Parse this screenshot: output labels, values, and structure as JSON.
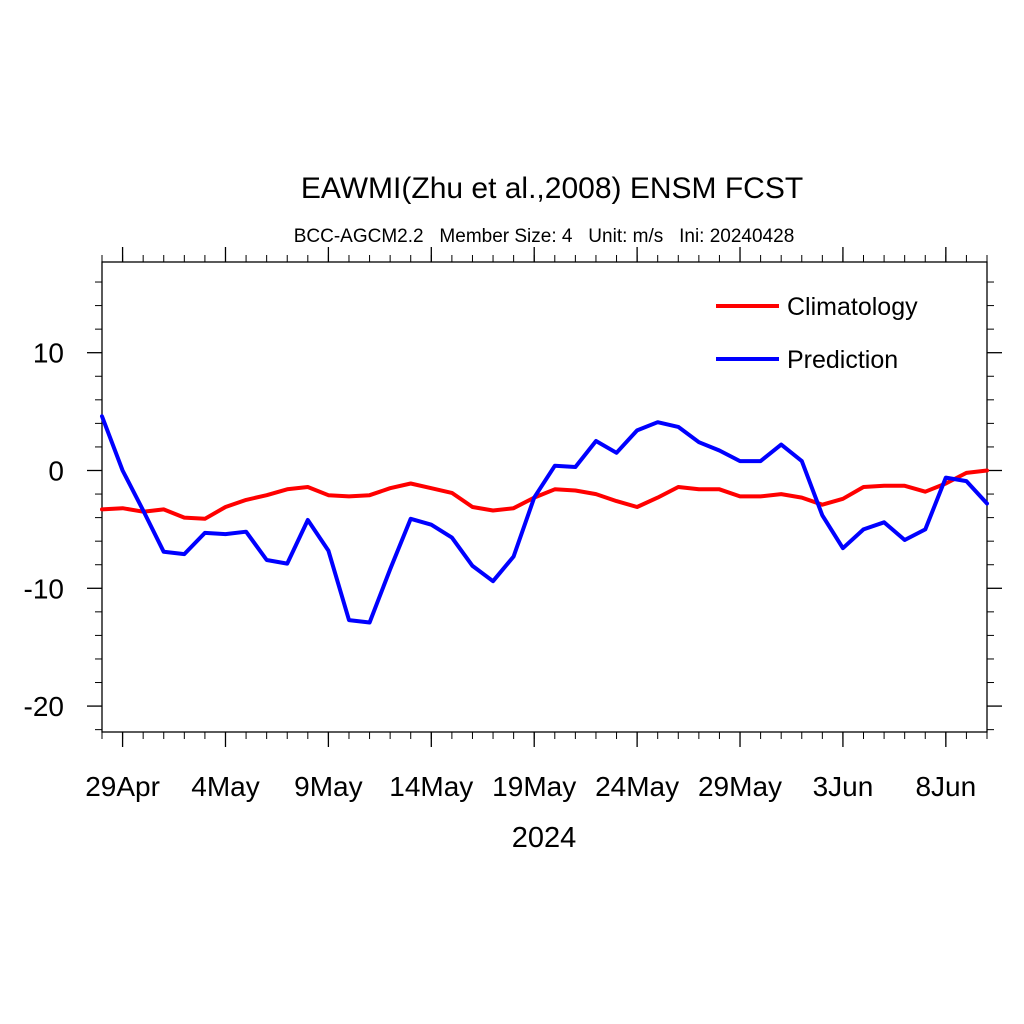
{
  "chart_data": {
    "type": "line",
    "title": "EAWMI(Zhu et al.,2008) ENSM FCST",
    "subtitle": "BCC-AGCM2.2   Member Size: 4   Unit: m/s   Ini: 20240428",
    "xlabel": "2024",
    "ylabel": "",
    "x_start": "2024-04-28",
    "x_end": "2024-06-10",
    "xlim": [
      "2024-04-28",
      "2024-06-10"
    ],
    "ylim": [
      -22.2,
      17.7
    ],
    "xticks": [
      {
        "date": "2024-04-29",
        "label": "29Apr"
      },
      {
        "date": "2024-05-04",
        "label": "4May"
      },
      {
        "date": "2024-05-09",
        "label": "9May"
      },
      {
        "date": "2024-05-14",
        "label": "14May"
      },
      {
        "date": "2024-05-19",
        "label": "19May"
      },
      {
        "date": "2024-05-24",
        "label": "24May"
      },
      {
        "date": "2024-05-29",
        "label": "29May"
      },
      {
        "date": "2024-06-03",
        "label": "3Jun"
      },
      {
        "date": "2024-06-08",
        "label": "8Jun"
      }
    ],
    "yticks": [
      {
        "value": 10,
        "label": "10"
      },
      {
        "value": 0,
        "label": "0"
      },
      {
        "value": -10,
        "label": "-10"
      },
      {
        "value": -20,
        "label": "-20"
      }
    ],
    "grid": false,
    "legend_position": "top-right",
    "series": [
      {
        "name": "Climatology",
        "color": "#ff0000",
        "x": [
          "2024-04-28",
          "2024-04-29",
          "2024-04-30",
          "2024-05-01",
          "2024-05-02",
          "2024-05-03",
          "2024-05-04",
          "2024-05-05",
          "2024-05-06",
          "2024-05-07",
          "2024-05-08",
          "2024-05-09",
          "2024-05-10",
          "2024-05-11",
          "2024-05-12",
          "2024-05-13",
          "2024-05-14",
          "2024-05-15",
          "2024-05-16",
          "2024-05-17",
          "2024-05-18",
          "2024-05-19",
          "2024-05-20",
          "2024-05-21",
          "2024-05-22",
          "2024-05-23",
          "2024-05-24",
          "2024-05-25",
          "2024-05-26",
          "2024-05-27",
          "2024-05-28",
          "2024-05-29",
          "2024-05-30",
          "2024-05-31",
          "2024-06-01",
          "2024-06-02",
          "2024-06-03",
          "2024-06-04",
          "2024-06-05",
          "2024-06-06",
          "2024-06-07",
          "2024-06-08",
          "2024-06-09",
          "2024-06-10"
        ],
        "values": [
          -3.3,
          -3.2,
          -3.5,
          -3.3,
          -4.0,
          -4.1,
          -3.1,
          -2.5,
          -2.1,
          -1.6,
          -1.4,
          -2.1,
          -2.2,
          -2.1,
          -1.5,
          -1.1,
          -1.5,
          -1.9,
          -3.1,
          -3.4,
          -3.2,
          -2.3,
          -1.6,
          -1.7,
          -2.0,
          -2.6,
          -3.1,
          -2.3,
          -1.4,
          -1.6,
          -1.6,
          -2.2,
          -2.2,
          -2.0,
          -2.3,
          -2.9,
          -2.4,
          -1.4,
          -1.3,
          -1.3,
          -1.8,
          -1.1,
          -0.2,
          0.0
        ]
      },
      {
        "name": "Prediction",
        "color": "#0000ff",
        "x": [
          "2024-04-28",
          "2024-04-29",
          "2024-04-30",
          "2024-05-01",
          "2024-05-02",
          "2024-05-03",
          "2024-05-04",
          "2024-05-05",
          "2024-05-06",
          "2024-05-07",
          "2024-05-08",
          "2024-05-09",
          "2024-05-10",
          "2024-05-11",
          "2024-05-12",
          "2024-05-13",
          "2024-05-14",
          "2024-05-15",
          "2024-05-16",
          "2024-05-17",
          "2024-05-18",
          "2024-05-19",
          "2024-05-20",
          "2024-05-21",
          "2024-05-22",
          "2024-05-23",
          "2024-05-24",
          "2024-05-25",
          "2024-05-26",
          "2024-05-27",
          "2024-05-28",
          "2024-05-29",
          "2024-05-30",
          "2024-05-31",
          "2024-06-01",
          "2024-06-02",
          "2024-06-03",
          "2024-06-04",
          "2024-06-05",
          "2024-06-06",
          "2024-06-07",
          "2024-06-08",
          "2024-06-09",
          "2024-06-10"
        ],
        "values": [
          4.6,
          0.0,
          -3.4,
          -6.9,
          -7.1,
          -5.3,
          -5.4,
          -5.2,
          -7.6,
          -7.9,
          -4.2,
          -6.8,
          -12.7,
          -12.9,
          -8.4,
          -4.1,
          -4.6,
          -5.7,
          -8.1,
          -9.4,
          -7.3,
          -2.3,
          0.4,
          0.3,
          2.5,
          1.5,
          3.4,
          4.1,
          3.7,
          2.4,
          1.7,
          0.8,
          0.8,
          2.2,
          0.8,
          -3.8,
          -6.6,
          -5.0,
          -4.4,
          -5.9,
          -5.0,
          -0.6,
          -0.9,
          -2.8
        ]
      }
    ]
  }
}
